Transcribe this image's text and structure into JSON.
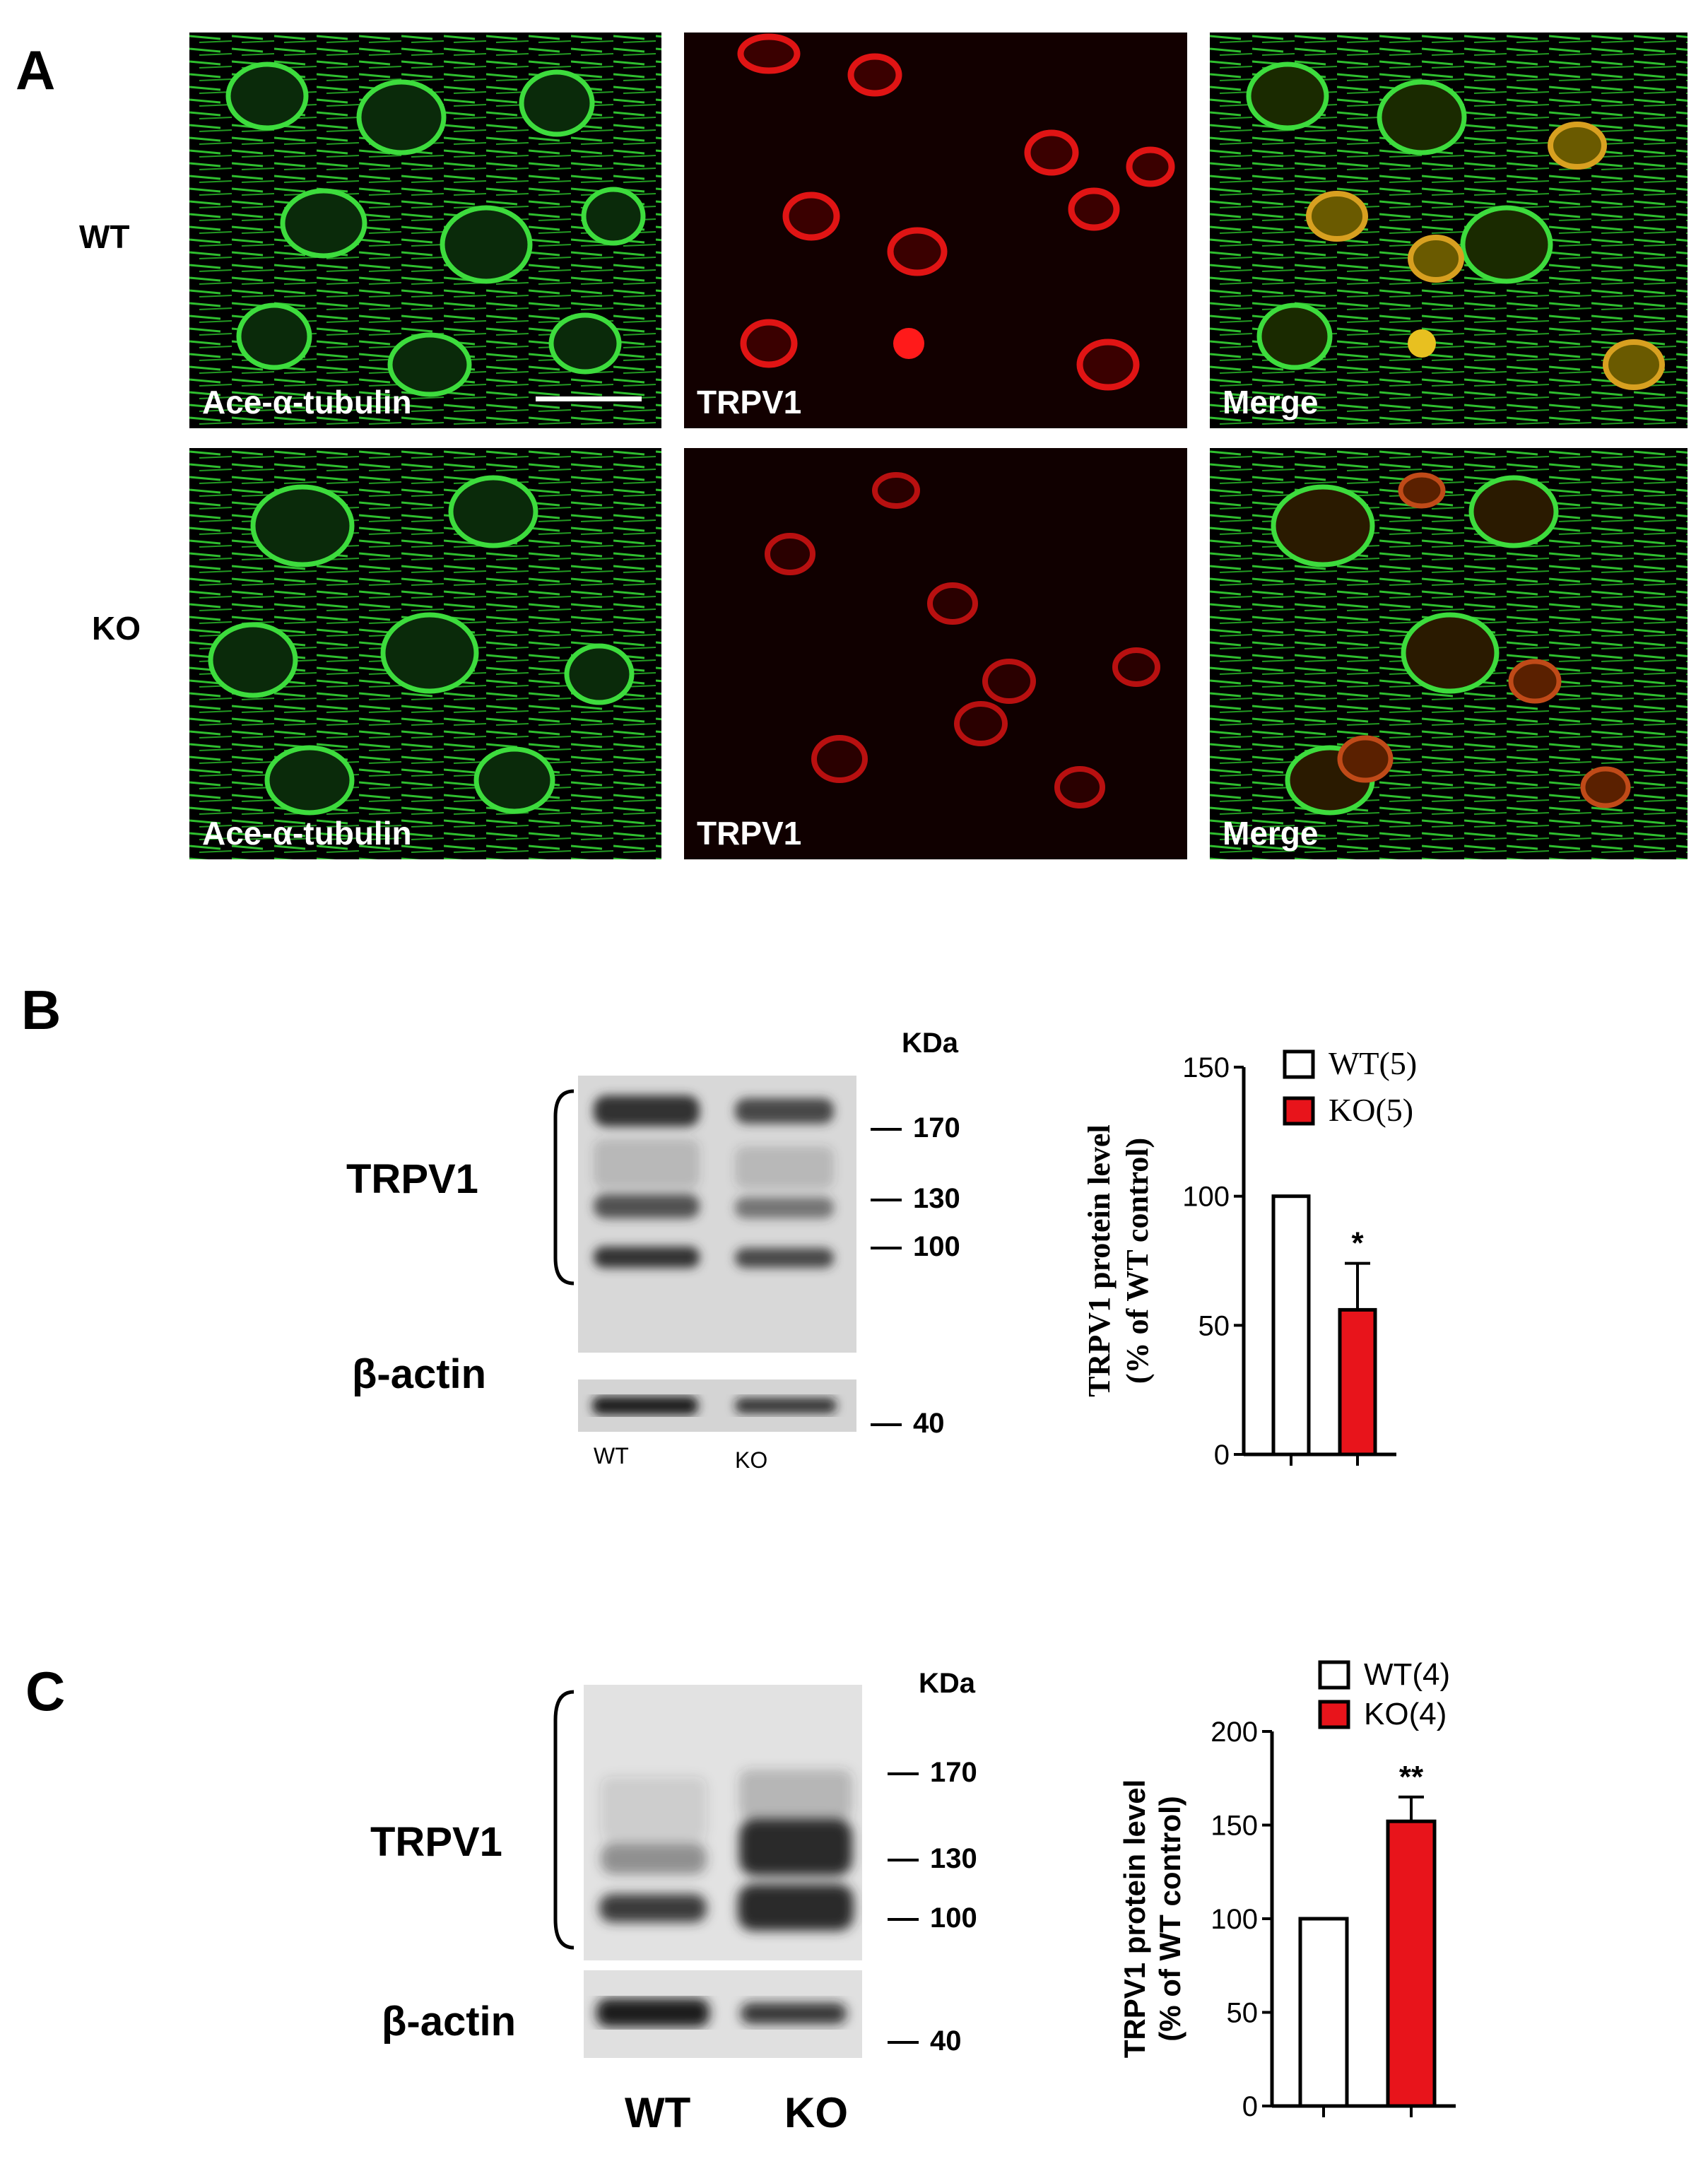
{
  "panelA": {
    "letter": "A",
    "rows": [
      {
        "label": "WT",
        "tiles": [
          "Ace-α-tubulin",
          "TRPV1",
          "Merge"
        ]
      },
      {
        "label": "KO",
        "tiles": [
          "Ace-α-tubulin",
          "TRPV1",
          "Merge"
        ]
      }
    ]
  },
  "panelB": {
    "letter": "B",
    "blot": {
      "kda_label": "KDa",
      "markers": [
        "170",
        "130",
        "100",
        "40"
      ],
      "protein_top": "TRPV1",
      "protein_bottom": "β-actin",
      "lanes": [
        "WT",
        "KO"
      ]
    }
  },
  "panelC": {
    "letter": "C",
    "blot": {
      "kda_label": "KDa",
      "markers": [
        "170",
        "130",
        "100",
        "40"
      ],
      "protein_top": "TRPV1",
      "protein_bottom": "β-actin",
      "lanes": [
        "WT",
        "KO"
      ]
    }
  },
  "chart_data": [
    {
      "type": "bar",
      "panel": "B",
      "ylabel": "TRPV1 protein level",
      "ylabel2": "(% of WT control)",
      "ylim": [
        0,
        150
      ],
      "yticks": [
        "0",
        "50",
        "100",
        "150"
      ],
      "categories": [
        "WT(5)",
        "KO(5)"
      ],
      "values": [
        100,
        56
      ],
      "errors": [
        0,
        18
      ],
      "significance": [
        "",
        "*"
      ],
      "colors": [
        "#ffffff",
        "#e8141b"
      ],
      "legend": [
        "WT(5)",
        "KO(5)"
      ],
      "legend_position": "top-right"
    },
    {
      "type": "bar",
      "panel": "C",
      "ylabel": "TRPV1 protein level",
      "ylabel2": "(% of WT control)",
      "ylim": [
        0,
        200
      ],
      "yticks": [
        "0",
        "50",
        "100",
        "150",
        "200"
      ],
      "categories": [
        "WT(4)",
        "KO(4)"
      ],
      "values": [
        100,
        152
      ],
      "errors": [
        0,
        13
      ],
      "significance": [
        "",
        "**"
      ],
      "colors": [
        "#ffffff",
        "#e8141b"
      ],
      "legend": [
        "WT(4)",
        "KO(4)"
      ],
      "legend_position": "top-right"
    }
  ]
}
